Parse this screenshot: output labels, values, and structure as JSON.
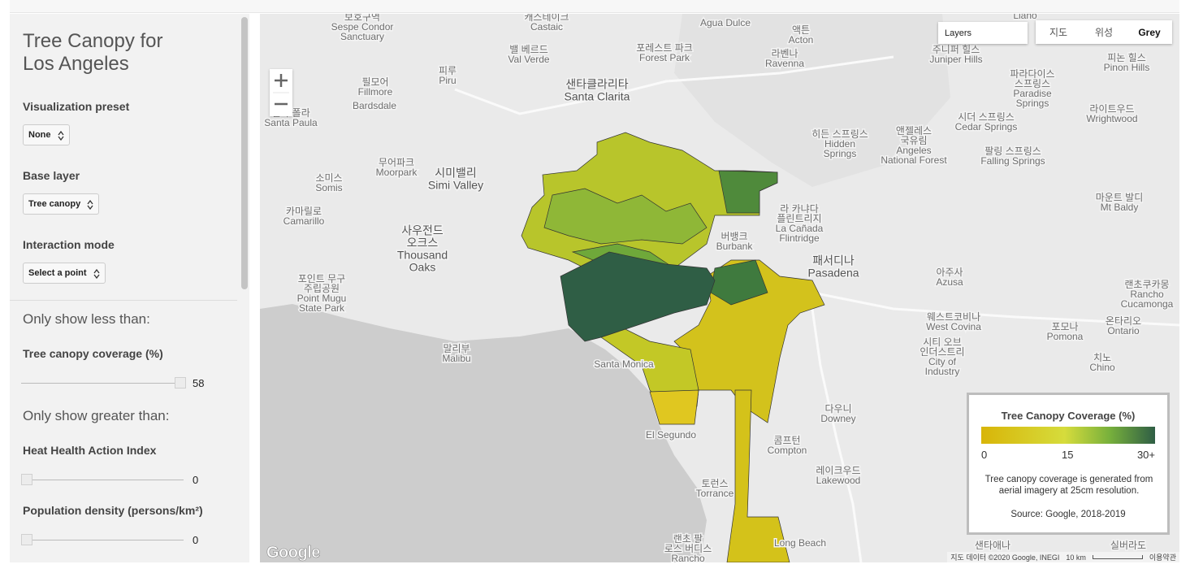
{
  "sidebar": {
    "title": "Tree Canopy for Los Angeles",
    "controls": [
      {
        "label": "Visualization preset",
        "selected": "None"
      },
      {
        "label": "Base layer",
        "selected": "Tree canopy"
      },
      {
        "label": "Interaction mode",
        "selected": "Select a point"
      }
    ],
    "filters": [
      {
        "heading": "Only show less than:",
        "sliders": [
          {
            "label": "Tree canopy coverage (%)",
            "value": 58
          }
        ]
      },
      {
        "heading": "Only show greater than:",
        "sliders": [
          {
            "label": "Heat Health Action Index",
            "value": 0
          },
          {
            "label": "Population density (persons/km²)",
            "value": 0
          }
        ]
      }
    ]
  },
  "map": {
    "layers_input": "Layers",
    "map_types": [
      {
        "label": "지도",
        "selected": false
      },
      {
        "label": "위성",
        "selected": false
      },
      {
        "label": "Grey",
        "selected": true
      }
    ],
    "labels": [
      [
        "보호구역",
        "Sespe Condor",
        "Sanctuary"
      ],
      [
        "캐스테이크",
        "Castaic"
      ],
      [
        "Agua Dulce"
      ],
      [
        "액튼",
        "Acton"
      ],
      [
        "Llano"
      ],
      [
        "주니퍼 힐스",
        "Juniper Hills"
      ],
      [
        "피논 힐스",
        "Pinon Hills"
      ],
      [
        "밸 베르드",
        "Val Verde"
      ],
      [
        "포레스트 파크",
        "Forest Park"
      ],
      [
        "라벤나",
        "Ravenna"
      ],
      [
        "피루",
        "Piru"
      ],
      [
        "필모어",
        "Fillmore"
      ],
      [
        "샌타클라리타",
        "Santa Clarita"
      ],
      [
        "파라다이스",
        "스프링스",
        "Paradise",
        "Springs"
      ],
      [
        "Bardsdale"
      ],
      [
        "샌타 폴라",
        "Santa Paula"
      ],
      [
        "시더 스프링스",
        "Cedar Springs"
      ],
      [
        "라이트우드",
        "Wrightwood"
      ],
      [
        "히든 스프링스",
        "Hidden",
        "Springs"
      ],
      [
        "앤젤레스",
        "국유림",
        "Angeles",
        "National Forest"
      ],
      [
        "팔링 스프링스",
        "Falling Springs"
      ],
      [
        "무어파크",
        "Moorpark"
      ],
      [
        "시미밸리",
        "Simi Valley"
      ],
      [
        "소미스",
        "Somis"
      ],
      [
        "마운트 발디",
        "Mt Baldy"
      ],
      [
        "카마릴로",
        "Camarillo"
      ],
      [
        "라 카냐다",
        "플린트리지",
        "La Cañada",
        "Flintridge"
      ],
      [
        "사우전드",
        "오크스",
        "Thousand",
        "Oaks"
      ],
      [
        "버뱅크",
        "Burbank"
      ],
      [
        "패서디나",
        "Pasadena"
      ],
      [
        "아주사",
        "Azusa"
      ],
      [
        "포인트 무구",
        "주립공원",
        "Point Mugu",
        "State Park"
      ],
      [
        "랜초쿠카몽",
        "Rancho",
        "Cucamonga"
      ],
      [
        "웨스트코비나",
        "West Covina"
      ],
      [
        "포모나",
        "Pomona"
      ],
      [
        "온타리오",
        "Ontario"
      ],
      [
        "말리부",
        "Malibu"
      ],
      [
        "시티 오브",
        "인더스트리",
        "City of",
        "Industry"
      ],
      [
        "Santa Monica"
      ],
      [
        "치노",
        "Chino"
      ],
      [
        "다우니",
        "Downey"
      ],
      [
        "El Segundo"
      ],
      [
        "콤프턴",
        "Compton"
      ],
      [
        "레이크우드",
        "Lakewood"
      ],
      [
        "토런스",
        "Torrance"
      ],
      [
        "Long Beach"
      ],
      [
        "랜초 팔",
        "로스 버디스",
        "Rancho"
      ],
      [
        "샌타애나"
      ],
      [
        "실버라도"
      ]
    ],
    "logo": "Google",
    "attribution": "지도 데이터 ©2020 Google, INEGI",
    "scale": "10 km",
    "terms": "이용약관"
  },
  "legend": {
    "title": "Tree Canopy Coverage (%)",
    "ticks": [
      "0",
      "15",
      "30+"
    ],
    "description": "Tree canopy coverage is generated from aerial imagery at 25cm resolution.",
    "source": "Source: Google, 2018-2019"
  }
}
